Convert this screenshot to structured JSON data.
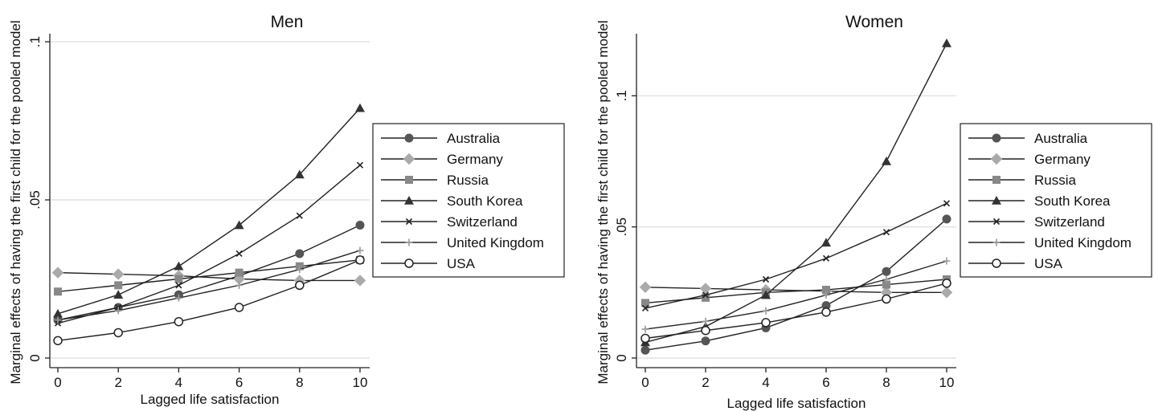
{
  "chart_data": [
    {
      "type": "line",
      "title": "Men",
      "xlabel": "Lagged life satisfaction",
      "ylabel": "Marginal effects of having the first child for the pooled model",
      "x": [
        0,
        2,
        4,
        6,
        8,
        10
      ],
      "xticks": [
        "0",
        "2",
        "4",
        "6",
        "8",
        "10"
      ],
      "ylim": [
        0,
        0.1
      ],
      "yticks": [
        0,
        0.05,
        0.1
      ],
      "ytick_labels": [
        "0",
        ".05",
        ".1"
      ],
      "grid": true,
      "legend_position": "right",
      "series": [
        {
          "name": "Australia",
          "marker": "circle-filled",
          "color": "#555555",
          "values": [
            0.012,
            0.016,
            0.02,
            0.026,
            0.033,
            0.042
          ]
        },
        {
          "name": "Germany",
          "marker": "diamond-filled",
          "color": "#aaaaaa",
          "values": [
            0.027,
            0.0265,
            0.026,
            0.025,
            0.0245,
            0.0245
          ]
        },
        {
          "name": "Russia",
          "marker": "square-filled",
          "color": "#888888",
          "values": [
            0.021,
            0.023,
            0.025,
            0.027,
            0.029,
            0.031
          ]
        },
        {
          "name": "South Korea",
          "marker": "triangle-filled",
          "color": "#333333",
          "values": [
            0.014,
            0.02,
            0.029,
            0.042,
            0.058,
            0.079
          ]
        },
        {
          "name": "Switzerland",
          "marker": "x",
          "color": "#222222",
          "values": [
            0.011,
            0.016,
            0.023,
            0.033,
            0.045,
            0.061
          ]
        },
        {
          "name": "United Kingdom",
          "marker": "plus",
          "color": "#999999",
          "values": [
            0.012,
            0.015,
            0.019,
            0.023,
            0.028,
            0.034
          ]
        },
        {
          "name": "USA",
          "marker": "circle-open",
          "color": "#222222",
          "values": [
            0.0055,
            0.008,
            0.0115,
            0.016,
            0.023,
            0.031
          ]
        }
      ]
    },
    {
      "type": "line",
      "title": "Women",
      "xlabel": "Lagged life satisfaction",
      "ylabel": "Marginal effects of having the first child for the pooled model",
      "x": [
        0,
        2,
        4,
        6,
        8,
        10
      ],
      "xticks": [
        "0",
        "2",
        "4",
        "6",
        "8",
        "10"
      ],
      "ylim": [
        0,
        0.12
      ],
      "yticks": [
        0,
        0.05,
        0.1
      ],
      "ytick_labels": [
        "0",
        ".05",
        ".1"
      ],
      "grid": true,
      "legend_position": "right",
      "series": [
        {
          "name": "Australia",
          "marker": "circle-filled",
          "color": "#555555",
          "values": [
            0.003,
            0.0065,
            0.0115,
            0.02,
            0.033,
            0.053
          ]
        },
        {
          "name": "Germany",
          "marker": "diamond-filled",
          "color": "#aaaaaa",
          "values": [
            0.027,
            0.0265,
            0.026,
            0.0255,
            0.025,
            0.025
          ]
        },
        {
          "name": "Russia",
          "marker": "square-filled",
          "color": "#888888",
          "values": [
            0.021,
            0.023,
            0.025,
            0.026,
            0.028,
            0.03
          ]
        },
        {
          "name": "South Korea",
          "marker": "triangle-filled",
          "color": "#333333",
          "values": [
            0.006,
            0.012,
            0.024,
            0.044,
            0.075,
            0.12
          ]
        },
        {
          "name": "Switzerland",
          "marker": "x",
          "color": "#222222",
          "values": [
            0.019,
            0.024,
            0.03,
            0.038,
            0.048,
            0.059
          ]
        },
        {
          "name": "United Kingdom",
          "marker": "plus",
          "color": "#999999",
          "values": [
            0.011,
            0.014,
            0.018,
            0.024,
            0.03,
            0.037
          ]
        },
        {
          "name": "USA",
          "marker": "circle-open",
          "color": "#222222",
          "values": [
            0.0075,
            0.0105,
            0.0135,
            0.0175,
            0.0225,
            0.0285
          ]
        }
      ]
    }
  ]
}
